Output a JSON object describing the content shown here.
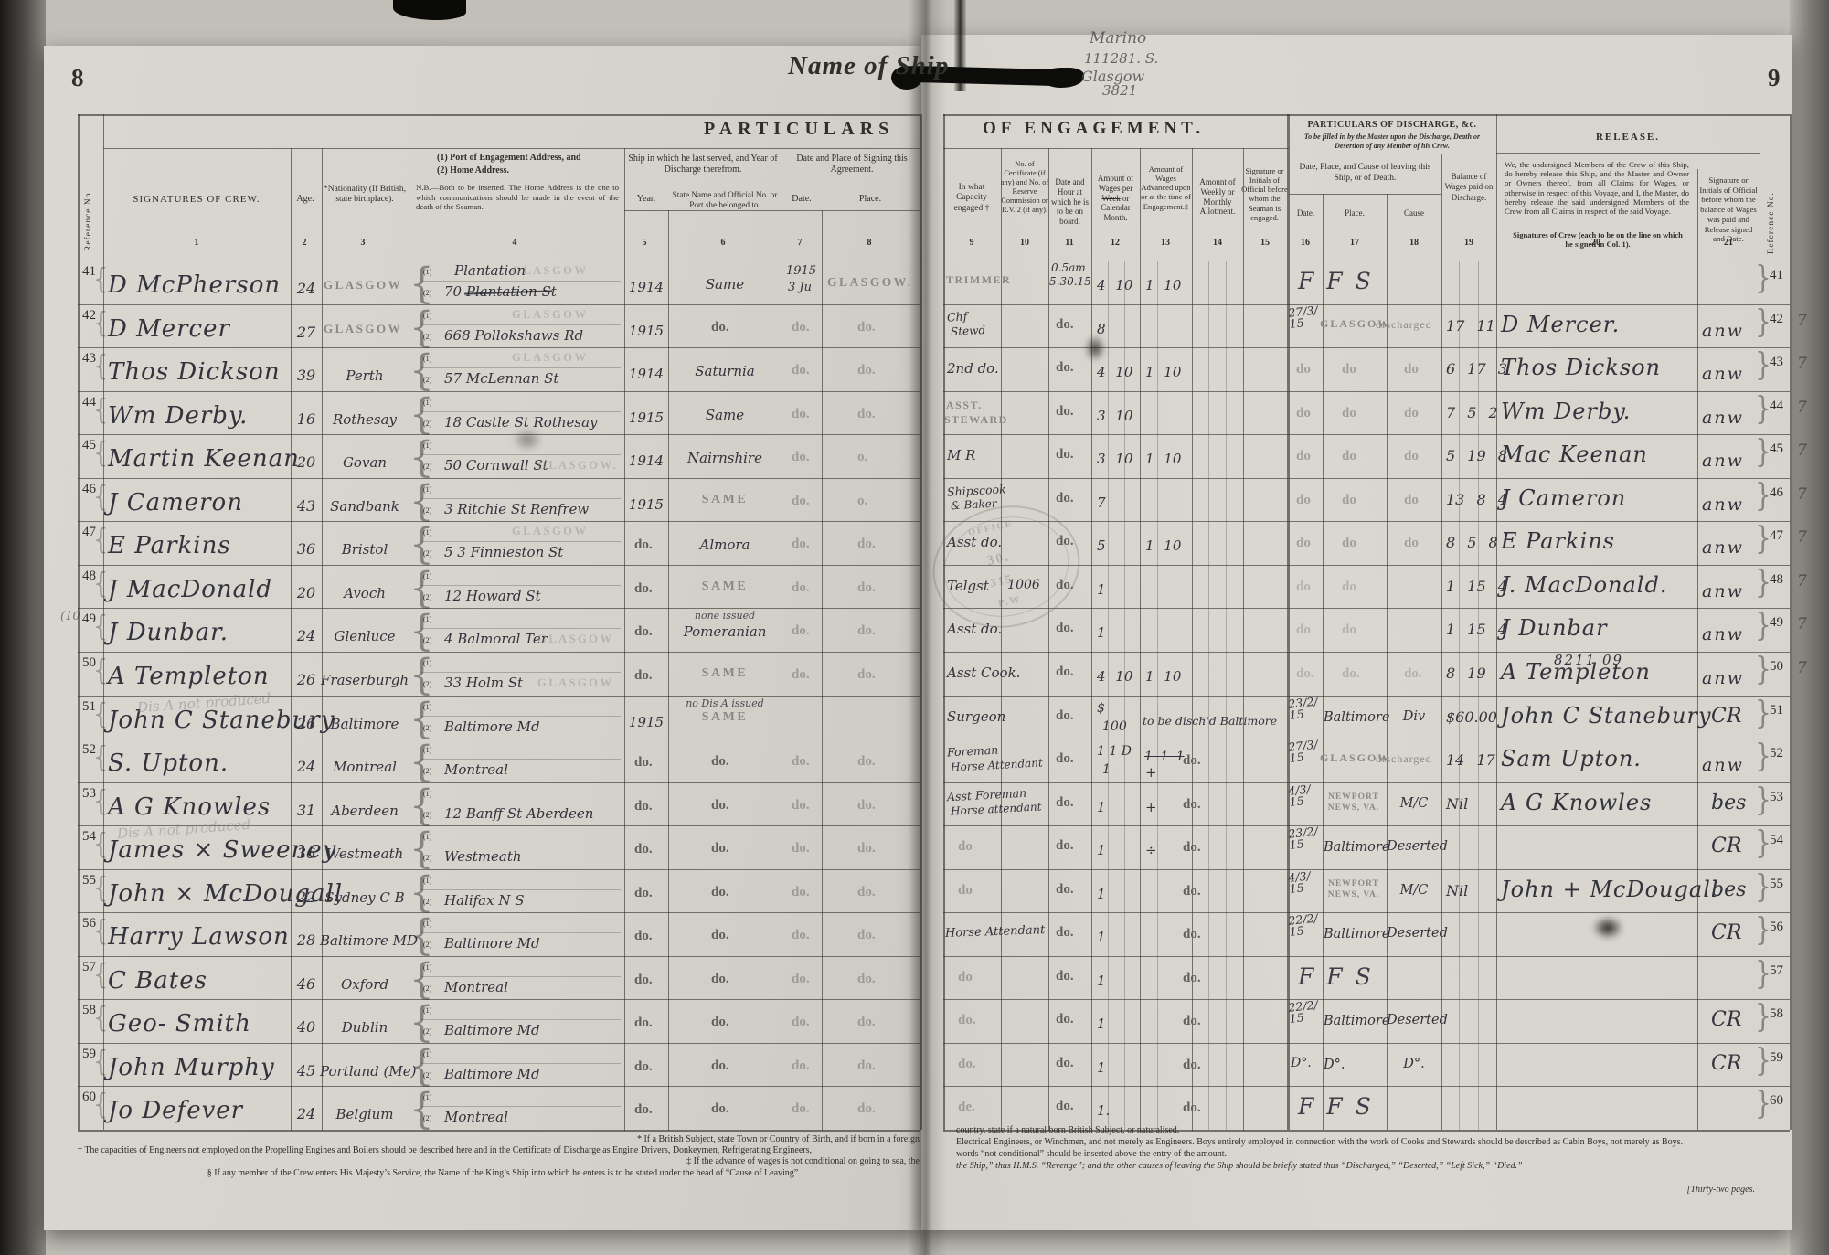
{
  "meta": {
    "title_center": "Name of Ship",
    "pencil": {
      "line1": "Marino",
      "line2": "111281. S.",
      "line3": "Glasgow",
      "line4": "3821"
    },
    "colors": {
      "paper": "#d8d5ce",
      "ink": "#32333c",
      "stamp": "#8a8983",
      "rule": "#3c3a36"
    }
  },
  "left": {
    "page_no": "8",
    "title": "PARTICULARS",
    "ref_label": "Reference No.",
    "c1": "SIGNATURES OF CREW.",
    "c2": "Age.",
    "c3": "*Nationality (If British, state birthplace).",
    "c4a": "(1) Port of Engagement Address, and",
    "c4b": "(2) Home Address.",
    "c4n": "N.B.—Both to be inserted. The Home Address is the one to which communications should be made in the event of the death of the Seaman.",
    "g56": "Ship in which he last served, and Year of Discharge therefrom.",
    "c5": "Year.",
    "c6": "State Name and Official No. or Port she belonged to.",
    "g78": "Date and Place of Signing this Agreement.",
    "c7": "Date.",
    "c8": "Place.",
    "nums": [
      "1",
      "2",
      "3",
      "4",
      "5",
      "6",
      "7",
      "8"
    ],
    "faint_note": "Dis A not produced",
    "footnotes": [
      "* If a British Subject, state Town or Country of Birth, and if born in a foreign",
      "† The capacities of Engineers not employed on the Propelling Engines and Boilers should be described here and in the Certificate of Discharge as Engine Drivers, Donkeymen, Refrigerating Engineers,",
      "‡ If the advance of wages is not conditional on going to sea, the",
      "§ If any member of the Crew enters His Majesty’s Service, the Name of the King’s Ship into which he enters is to be stated under the head of “Cause of Leaving”"
    ],
    "rows": [
      {
        "ref": "41",
        "sig": "D McPherson",
        "age": "24",
        "nat": "GLASGOW",
        "natS": "stamp",
        "a1": "Plantation",
        "a1st": "GLASGOW",
        "a2": "70 Plantation St",
        "a2x": true,
        "year": "1914",
        "ship": "Same",
        "d1": "1915",
        "d2": "3 Ju",
        "pl": "GLASGOW.",
        "plS": "stamp"
      },
      {
        "ref": "42",
        "sig": "D Mercer",
        "age": "27",
        "nat": "GLASGOW",
        "natS": "stamp",
        "a1st": "GLASGOW",
        "a2": "668 Pollokshaws Rd",
        "year": "1915",
        "ship": "do.",
        "d1": "do.",
        "pl": "do."
      },
      {
        "ref": "43",
        "sig": "Thos Dickson",
        "age": "39",
        "nat": "Perth",
        "a1st": "GLASGOW",
        "a2": "57 McLennan St",
        "year": "1914",
        "ship": "Saturnia",
        "d1": "do.",
        "pl": "do."
      },
      {
        "ref": "44",
        "sig": "Wm Derby.",
        "age": "16",
        "nat": "Rothesay",
        "a2": "18 Castle St Rothesay",
        "year": "1915",
        "ship": "Same",
        "d1": "do.",
        "pl": "do."
      },
      {
        "ref": "45",
        "sig": "Martin Keenan",
        "age": "20",
        "nat": "Govan",
        "a2": "50 Cornwall St",
        "a2st": "GLASGOW.",
        "year": "1914",
        "ship": "Nairnshire",
        "d1": "do.",
        "pl": "o."
      },
      {
        "ref": "46",
        "sig": "J Cameron",
        "age": "43",
        "nat": "Sandbank",
        "a2": "3 Ritchie St Renfrew",
        "year": "1915",
        "ship": "SAME",
        "shS": "stamp",
        "d1": "do.",
        "pl": "o."
      },
      {
        "ref": "47",
        "sig": "E Parkins",
        "age": "36",
        "nat": "Bristol",
        "a1st": "GLASGOW",
        "a2": "5 3 Finnieston St",
        "year": "do.",
        "ship": "Almora",
        "d1": "do.",
        "pl": "do."
      },
      {
        "ref": "48",
        "sig": "J MacDonald",
        "age": "20",
        "nat": "Avoch",
        "a2": "12 Howard St",
        "year": "do.",
        "ship": "SAME",
        "shS": "stamp",
        "d1": "do.",
        "pl": "do."
      },
      {
        "ref": "49",
        "refN": "(10",
        "sig": "J Dunbar.",
        "age": "24",
        "nat": "Glenluce",
        "a2": "4 Balmoral Ter",
        "a2st": "GLASGOW",
        "year": "do.",
        "ship": "Pomeranian",
        "shN": "none issued",
        "d1": "do.",
        "pl": "do."
      },
      {
        "ref": "50",
        "sig": "A Templeton",
        "age": "26",
        "nat": "Fraserburgh",
        "a2": "33 Holm St",
        "a2st": "GLASGOW",
        "year": "do.",
        "ship": "SAME",
        "shS": "stamp",
        "d1": "do.",
        "pl": "do."
      },
      {
        "ref": "51",
        "sig": "John C Stanebury",
        "age": "26",
        "nat": "Baltimore",
        "a2": "Baltimore Md",
        "year": "1915",
        "ship": "SAME",
        "shS": "stamp",
        "shN": "no Dis A issued"
      },
      {
        "ref": "52",
        "sig": "S. Upton.",
        "age": "24",
        "nat": "Montreal",
        "a2": "Montreal",
        "year": "do.",
        "ship": "do.",
        "d1": "do.",
        "pl": "do."
      },
      {
        "ref": "53",
        "sig": "A G Knowles",
        "age": "31",
        "nat": "Aberdeen",
        "a2": "12 Banff St Aberdeen",
        "year": "do.",
        "ship": "do.",
        "d1": "do.",
        "pl": "do."
      },
      {
        "ref": "54",
        "sig": "James × Sweeney",
        "age": "36",
        "nat": "Westmeath",
        "a2": "Westmeath",
        "year": "do.",
        "ship": "do.",
        "d1": "do.",
        "pl": "do."
      },
      {
        "ref": "55",
        "sig": "John × McDougall",
        "age": "22",
        "nat": "Sydney C B",
        "a2": "Halifax N S",
        "year": "do.",
        "ship": "do.",
        "d1": "do.",
        "pl": "do."
      },
      {
        "ref": "56",
        "sig": "Harry Lawson",
        "age": "28",
        "nat": "Baltimore MD",
        "a2": "Baltimore Md",
        "year": "do.",
        "ship": "do.",
        "d1": "do.",
        "pl": "do."
      },
      {
        "ref": "57",
        "sig": "C Bates",
        "age": "46",
        "nat": "Oxford",
        "a2": "Montreal",
        "year": "do.",
        "ship": "do.",
        "d1": "do.",
        "pl": "do."
      },
      {
        "ref": "58",
        "sig": "Geo- Smith",
        "age": "40",
        "nat": "Dublin",
        "a2": "Baltimore Md",
        "year": "do.",
        "ship": "do.",
        "d1": "do.",
        "pl": "do."
      },
      {
        "ref": "59",
        "sig": "John Murphy",
        "age": "45",
        "nat": "Portland (Me)",
        "a2": "Baltimore Md",
        "year": "do.",
        "ship": "do.",
        "d1": "do.",
        "pl": "do."
      },
      {
        "ref": "60",
        "sig": "Jo Defever",
        "age": "24",
        "nat": "Belgium",
        "a2": "Montreal",
        "year": "do.",
        "ship": "do.",
        "d1": "do.",
        "pl": "do."
      }
    ]
  },
  "right": {
    "page_no": "9",
    "title": "OF ENGAGEMENT.",
    "c9": "In what Capacity engaged †",
    "c10": "No. of Certificate (if any) and No. of Reserve Commission or R.V. 2 (if any).",
    "c11": "Date and Hour at which he is to be on board.",
    "c12a": "Amount of Wages per ",
    "c12s": "Week",
    "c12b": " or Calendar Month.",
    "c13": "Amount of Wages Advanced upon or at the time of Engagement.‡",
    "c14": "Amount of Weekly or Monthly Allotment.",
    "c15": "Signature or Initials of Official before whom the Seaman is engaged.",
    "d_title": "PARTICULARS OF DISCHARGE, &c.",
    "d_sub": "To be filled in by the Master upon the Discharge, Death or Desertion of any Member of his Crew.",
    "d_group": "Date, Place, and Cause of leaving this Ship, or of Death.",
    "c16": "Date.",
    "c17": "Place.",
    "c18": "Cause",
    "c19": "Balance of Wages paid on Discharge.",
    "r_title": "RELEASE.",
    "r_text": "We, the undersigned Members of the Crew of this Ship, do hereby release this Ship, and the Master and Owner or Owners thereof, from all Claims for Wages, or otherwise in respect of this Voyage, and I, the Master, do hereby release the said undersigned Members of the Crew from all Claims in respect of the said Voyage.",
    "r_sub": "Signatures of Crew (each to be on the line on which he signed in Col. 1).",
    "c21": "Signature or Initials of Official before whom the balance of Wages was paid and Release signed and Date.",
    "ref_label": "Reference No.",
    "nums": [
      "9",
      "10",
      "11",
      "12",
      "13",
      "14",
      "15",
      "16",
      "17",
      "18",
      "19",
      "20",
      "21"
    ],
    "oval_stamp": [
      "OFFICE",
      "30.",
      "315",
      "P.W."
    ],
    "pages_note": "[Thirty-two pages.",
    "footnotes": [
      "country, state if a natural born British Subject, or naturalised.",
      "Electrical Engineers, or Winchmen, and not merely as Engineers.   Boys entirely employed in connection with the work of Cooks and Stewards should be described as Cabin Boys, not merely as Boys.",
      "words “not conditional” should be inserted above the entry of the amount.",
      "the Ship,” thus H.M.S. “Revenge”; and the other causes of leaving the Ship should be briefly stated thus “Discharged,” “Deserted,” “Left Sick,” “Died.”"
    ],
    "rows": [
      {
        "ref": "41",
        "cap": "TRIMMER",
        "capS": "stamp",
        "hr1": "0.5am",
        "hr2": "5.30.15",
        "wg": "4 10",
        "adv": "1 10",
        "lp": "F F S",
        "lpS": "fss"
      },
      {
        "ref": "42",
        "mg": "7",
        "cap": "Chf",
        "cap2": "Stewd",
        "capS": "hws",
        "hr": "do.",
        "wg": "8",
        "ld": "27/3/15",
        "ldS": "frac",
        "lp": "GLASGOW",
        "lpS": "stamp",
        "lc": "discharged",
        "lcS": "stamp",
        "bal": "17 11",
        "rel": "D Mercer.",
        "off2": "anw"
      },
      {
        "ref": "43",
        "mg": "7",
        "cap": "2nd do.",
        "hr": "do.",
        "wg": "4 10",
        "adv": "1 10",
        "ld": "do",
        "ldS": "do",
        "lp": "do",
        "lpS": "do",
        "lc": "do",
        "lcS": "do",
        "bal": "6 17 3",
        "rel": "Thos Dickson",
        "off2": "anw"
      },
      {
        "ref": "44",
        "mg": "7",
        "cap": "ASST.",
        "cap2": "STEWARD",
        "capS": "stamp",
        "hr": "do.",
        "wg": "3 10",
        "ld": "do",
        "ldS": "do",
        "lp": "do",
        "lpS": "do",
        "lc": "do",
        "lcS": "do",
        "bal": "7 5 2",
        "rel": "Wm Derby.",
        "off2": "anw"
      },
      {
        "ref": "45",
        "mg": "7",
        "cap": "M R",
        "hr": "do.",
        "wg": "3 10",
        "adv": "1 10",
        "ld": "do",
        "ldS": "do",
        "lp": "do",
        "lpS": "do",
        "lc": "do",
        "lcS": "do",
        "bal": "5 19 8",
        "rel": "Mac Keenan",
        "off2": "anw"
      },
      {
        "ref": "46",
        "mg": "7",
        "cap": "Shipscook",
        "cap2": "& Baker",
        "capS": "hws",
        "hr": "do.",
        "wg": "7",
        "ld": "do",
        "ldS": "do",
        "lp": "do",
        "lpS": "do",
        "lc": "do",
        "lcS": "do",
        "bal": "13 8 4",
        "rel": "J Cameron",
        "off2": "anw"
      },
      {
        "ref": "47",
        "mg": "7",
        "cap": "Asst do.",
        "hr": "do.",
        "wg": "5",
        "adv": "1 10",
        "ld": "do",
        "ldS": "do",
        "lp": "do",
        "lpS": "do",
        "lc": "do",
        "lcS": "do",
        "bal": "8 5 8",
        "rel": "E Parkins",
        "off2": "anw"
      },
      {
        "ref": "48",
        "mg": "7",
        "cap": "Telgst",
        "cert": "1006",
        "hr": "do.",
        "wg": "1",
        "ld": "do",
        "ldS": "dofaint",
        "lp": "do",
        "lpS": "dofaint",
        "bal": "1 15 4",
        "rel": "J. MacDonald.",
        "off2": "anw"
      },
      {
        "ref": "49",
        "mg": "7",
        "cap": "Asst do.",
        "hr": "do.",
        "wg": "1",
        "ld": "do",
        "ldS": "dofaint",
        "lp": "do",
        "lpS": "dofaint",
        "bal": "1 15 4",
        "rel": "J Dunbar",
        "off2": "anw"
      },
      {
        "ref": "50",
        "mg": "7",
        "cap": "Asst Cook.",
        "hr": "do.",
        "wg": "4 10",
        "adv": "1 10",
        "ld": "do.",
        "ldS": "dofaint",
        "lp": "do.",
        "lpS": "dofaint",
        "lc": "do.",
        "lcS": "dofaint",
        "bal": "8 19",
        "relN": "8211 09",
        "rel": "A Templeton",
        "off2": "anw"
      },
      {
        "ref": "51",
        "cap": "Surgeon",
        "hr": "do.",
        "wg": "$",
        "wg2": "100",
        "note": "to be disch'd Baltimore",
        "noteS": "hw",
        "ld": "23/2/15",
        "ldS": "frac",
        "lp": "Baltimore",
        "lpS": "hw",
        "lc": "Div",
        "lcS": "hw",
        "bal": "$60.00",
        "rel": "John C Stanebury",
        "off2": "CR",
        "off2S": "mark"
      },
      {
        "ref": "52",
        "cap": "Foreman",
        "cap2": "Horse Attendant",
        "capS": "hws",
        "hr": "do.",
        "wg": "1 1 D",
        "wg2": "1",
        "advX": "1 1 1",
        "adv": "+",
        "note": "do.",
        "ld": "27/3/15",
        "ldS": "frac",
        "lp": "GLASGOW",
        "lpS": "stamp",
        "lc": "discharged",
        "lcS": "stamp",
        "bal": "14 17",
        "rel": "Sam Upton.",
        "off2": "anw"
      },
      {
        "ref": "53",
        "cap": "Asst Foreman",
        "cap2": "Horse attendant",
        "capS": "hws",
        "hr": "do.",
        "wg": "1",
        "adv": "+",
        "note": "do.",
        "ld": "4/3/15",
        "ldS": "frac",
        "lp": "NEWPORT NEWS, VA.",
        "lpS": "stamp2",
        "lc": "M/C",
        "lcS": "hw",
        "bal": "Nil",
        "rel": "A G Knowles",
        "off2": "bes",
        "off2S": "mark"
      },
      {
        "ref": "54",
        "cap": "do",
        "capS": "faint",
        "hr": "do.",
        "wg": "1",
        "adv": "÷",
        "note": "do.",
        "ld": "23/2/15",
        "ldS": "frac",
        "lp": "Baltimore",
        "lpS": "hw",
        "lc": "Deserted",
        "lcS": "hw",
        "off2": "CR",
        "off2S": "mark"
      },
      {
        "ref": "55",
        "cap": "do",
        "capS": "faint",
        "hr": "do.",
        "wg": "1",
        "note": "do.",
        "ld": "4/3/15",
        "ldS": "frac",
        "lp": "NEWPORT NEWS, VA.",
        "lpS": "stamp2",
        "lc": "M/C",
        "lcS": "hw",
        "bal": "Nil",
        "rel": "John + McDougall",
        "off2": "bes",
        "off2S": "mark"
      },
      {
        "ref": "56",
        "cap": "Horse Attendant",
        "capS": "hwsl",
        "hr": "do.",
        "wg": "1",
        "note": "do.",
        "ld": "22/2/15",
        "ldS": "frac",
        "lp": "Baltimore",
        "lpS": "hw",
        "lc": "Deserted",
        "lcS": "hw",
        "off2": "CR",
        "off2S": "mark"
      },
      {
        "ref": "57",
        "cap": "do",
        "capS": "faint",
        "hr": "do.",
        "wg": "1",
        "note": "do.",
        "lp": "F F S",
        "lpS": "fss"
      },
      {
        "ref": "58",
        "cap": "do.",
        "capS": "faint",
        "hr": "do.",
        "wg": "1",
        "note": "do.",
        "ld": "22/2/15",
        "ldS": "frac",
        "lp": "Baltimore",
        "lpS": "hw",
        "lc": "Deserted",
        "lcS": "hw",
        "off2": "CR",
        "off2S": "mark"
      },
      {
        "ref": "59",
        "cap": "do.",
        "capS": "faint",
        "hr": "do.",
        "wg": "1",
        "note": "do.",
        "ld": "D°.",
        "ldS": "hw",
        "lp": "D°.",
        "lpS": "hw",
        "lc": "D°.",
        "lcS": "hw",
        "off2": "CR",
        "off2S": "mark"
      },
      {
        "ref": "60",
        "cap": "de.",
        "capS": "faint",
        "hr": "do.",
        "wg": "1.",
        "note": "do.",
        "lp": "F F S",
        "lpS": "fss"
      }
    ]
  }
}
